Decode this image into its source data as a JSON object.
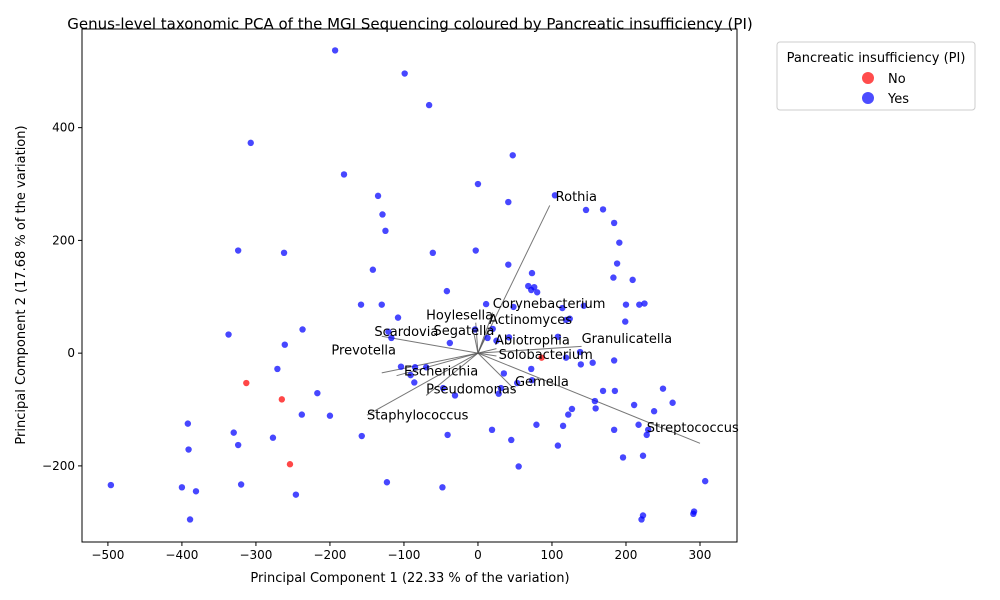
{
  "chart_data": {
    "type": "scatter",
    "title": "Genus-level taxonomic PCA of the MGI Sequencing coloured by Pancreatic insufficiency (PI)",
    "xlabel": "Principal Component 1 (22.33 % of the variation)",
    "ylabel": "Principal Component 2 (17.68 % of the variation)",
    "xlim": [
      -535,
      350
    ],
    "ylim": [
      -335,
      575
    ],
    "xticks": [
      -500,
      -400,
      -300,
      -200,
      -100,
      0,
      100,
      200,
      300
    ],
    "yticks": [
      -200,
      0,
      200,
      400
    ],
    "xtick_labels": [
      "−500",
      "−400",
      "−300",
      "−200",
      "−100",
      "0",
      "100",
      "200",
      "300"
    ],
    "ytick_labels": [
      "−200",
      "0",
      "200",
      "400"
    ],
    "grid": false,
    "legend": {
      "title": "Pancreatic insufficiency (PI)",
      "placement": "outside-top-right",
      "entries": [
        {
          "label": "No",
          "color": "#ff0000"
        },
        {
          "label": "Yes",
          "color": "#0000ff"
        }
      ]
    },
    "series": [
      {
        "name": "No",
        "color": "#ff0000",
        "points": [
          [
            -313,
            -53
          ],
          [
            -265,
            -82
          ],
          [
            -254,
            -197
          ],
          [
            86,
            -8
          ]
        ]
      },
      {
        "name": "Yes",
        "color": "#0000ff",
        "points": [
          [
            -193,
            537
          ],
          [
            -99,
            496
          ],
          [
            -66,
            440
          ],
          [
            -307,
            373
          ],
          [
            47,
            351
          ],
          [
            -181,
            317
          ],
          [
            0,
            300
          ],
          [
            104,
            280
          ],
          [
            -135,
            279
          ],
          [
            41,
            268
          ],
          [
            146,
            254
          ],
          [
            169,
            255
          ],
          [
            -129,
            246
          ],
          [
            184,
            231
          ],
          [
            -125,
            217
          ],
          [
            191,
            196
          ],
          [
            -324,
            182
          ],
          [
            -3,
            182
          ],
          [
            -262,
            178
          ],
          [
            -61,
            178
          ],
          [
            41,
            157
          ],
          [
            188,
            159
          ],
          [
            -142,
            148
          ],
          [
            73,
            142
          ],
          [
            183,
            134
          ],
          [
            209,
            130
          ],
          [
            68,
            119
          ],
          [
            76,
            117
          ],
          [
            72,
            112
          ],
          [
            80,
            108
          ],
          [
            -42,
            110
          ],
          [
            11,
            87
          ],
          [
            -158,
            86
          ],
          [
            -130,
            86
          ],
          [
            48,
            82
          ],
          [
            143,
            84
          ],
          [
            114,
            80
          ],
          [
            200,
            86
          ],
          [
            218,
            86
          ],
          [
            225,
            88
          ],
          [
            -108,
            63
          ],
          [
            119,
            59
          ],
          [
            124,
            61
          ],
          [
            199,
            56
          ],
          [
            20,
            43
          ],
          [
            -237,
            42
          ],
          [
            -4,
            42
          ],
          [
            -121,
            38
          ],
          [
            -337,
            33
          ],
          [
            108,
            29
          ],
          [
            42,
            28
          ],
          [
            13,
            27
          ],
          [
            -117,
            27
          ],
          [
            25,
            22
          ],
          [
            -38,
            18
          ],
          [
            -261,
            15
          ],
          [
            138,
            2
          ],
          [
            119,
            -8
          ],
          [
            184,
            -13
          ],
          [
            -104,
            -24
          ],
          [
            -85,
            -25
          ],
          [
            -70,
            -25
          ],
          [
            155,
            -17
          ],
          [
            139,
            -20
          ],
          [
            72,
            -28
          ],
          [
            -271,
            -28
          ],
          [
            35,
            -36
          ],
          [
            -91,
            -39
          ],
          [
            73,
            -48
          ],
          [
            -86,
            -52
          ],
          [
            53,
            -53
          ],
          [
            -47,
            -62
          ],
          [
            31,
            -62
          ],
          [
            250,
            -63
          ],
          [
            -217,
            -71
          ],
          [
            169,
            -67
          ],
          [
            185,
            -67
          ],
          [
            28,
            -72
          ],
          [
            -31,
            -75
          ],
          [
            158,
            -85
          ],
          [
            263,
            -88
          ],
          [
            211,
            -92
          ],
          [
            159,
            -98
          ],
          [
            127,
            -99
          ],
          [
            238,
            -103
          ],
          [
            -238,
            -109
          ],
          [
            -200,
            -111
          ],
          [
            122,
            -109
          ],
          [
            115,
            -129
          ],
          [
            -392,
            -125
          ],
          [
            217,
            -127
          ],
          [
            79,
            -127
          ],
          [
            184,
            -136
          ],
          [
            19,
            -136
          ],
          [
            230,
            -136
          ],
          [
            -330,
            -141
          ],
          [
            -41,
            -145
          ],
          [
            228,
            -145
          ],
          [
            -157,
            -147
          ],
          [
            -277,
            -150
          ],
          [
            45,
            -154
          ],
          [
            -324,
            -163
          ],
          [
            108,
            -164
          ],
          [
            -391,
            -171
          ],
          [
            196,
            -185
          ],
          [
            223,
            -182
          ],
          [
            55,
            -201
          ],
          [
            307,
            -227
          ],
          [
            -123,
            -229
          ],
          [
            -320,
            -233
          ],
          [
            -496,
            -234
          ],
          [
            -400,
            -238
          ],
          [
            -48,
            -238
          ],
          [
            -381,
            -245
          ],
          [
            -246,
            -251
          ],
          [
            223,
            -288
          ],
          [
            -389,
            -295
          ],
          [
            292,
            -281
          ],
          [
            291,
            -285
          ],
          [
            221,
            -295
          ]
        ]
      }
    ],
    "loadings": [
      {
        "label": "Rothia",
        "end": [
          97,
          262
        ],
        "text_at": [
          105,
          270
        ]
      },
      {
        "label": "Corynebacterium",
        "end": [
          20,
          72
        ],
        "text_at": [
          20,
          80
        ]
      },
      {
        "label": "Hoylesella",
        "end": [
          -3,
          54
        ],
        "text_at": [
          -70,
          60
        ]
      },
      {
        "label": "Actinomyces",
        "end": [
          15,
          45
        ],
        "text_at": [
          15,
          52
        ]
      },
      {
        "label": "Scardovia",
        "end": [
          -130,
          30
        ],
        "text_at": [
          -140,
          30
        ]
      },
      {
        "label": "Segatella",
        "end": [
          -5,
          32
        ],
        "text_at": [
          -60,
          32
        ]
      },
      {
        "label": "Granulicatella",
        "end": [
          140,
          12
        ],
        "text_at": [
          140,
          18
        ]
      },
      {
        "label": "Abiotrophia",
        "end": [
          25,
          8
        ],
        "text_at": [
          23,
          15
        ]
      },
      {
        "label": "Prevotella",
        "end": [
          -130,
          -35
        ],
        "text_at": [
          -198,
          -2
        ]
      },
      {
        "label": "Solobacterium",
        "end": [
          25,
          -5
        ],
        "text_at": [
          28,
          -10
        ]
      },
      {
        "label": "Escherichia",
        "end": [
          -110,
          -40
        ],
        "text_at": [
          -100,
          -40
        ]
      },
      {
        "label": "Gemella",
        "end": [
          50,
          -65
        ],
        "text_at": [
          50,
          -58
        ]
      },
      {
        "label": "Pseudomonas",
        "end": [
          -70,
          -75
        ],
        "text_at": [
          -70,
          -72
        ]
      },
      {
        "label": "Staphylococcus",
        "end": [
          -150,
          -110
        ],
        "text_at": [
          -150,
          -118
        ]
      },
      {
        "label": "Streptococcus",
        "end": [
          300,
          -160
        ],
        "text_at": [
          228,
          -140
        ]
      }
    ]
  }
}
